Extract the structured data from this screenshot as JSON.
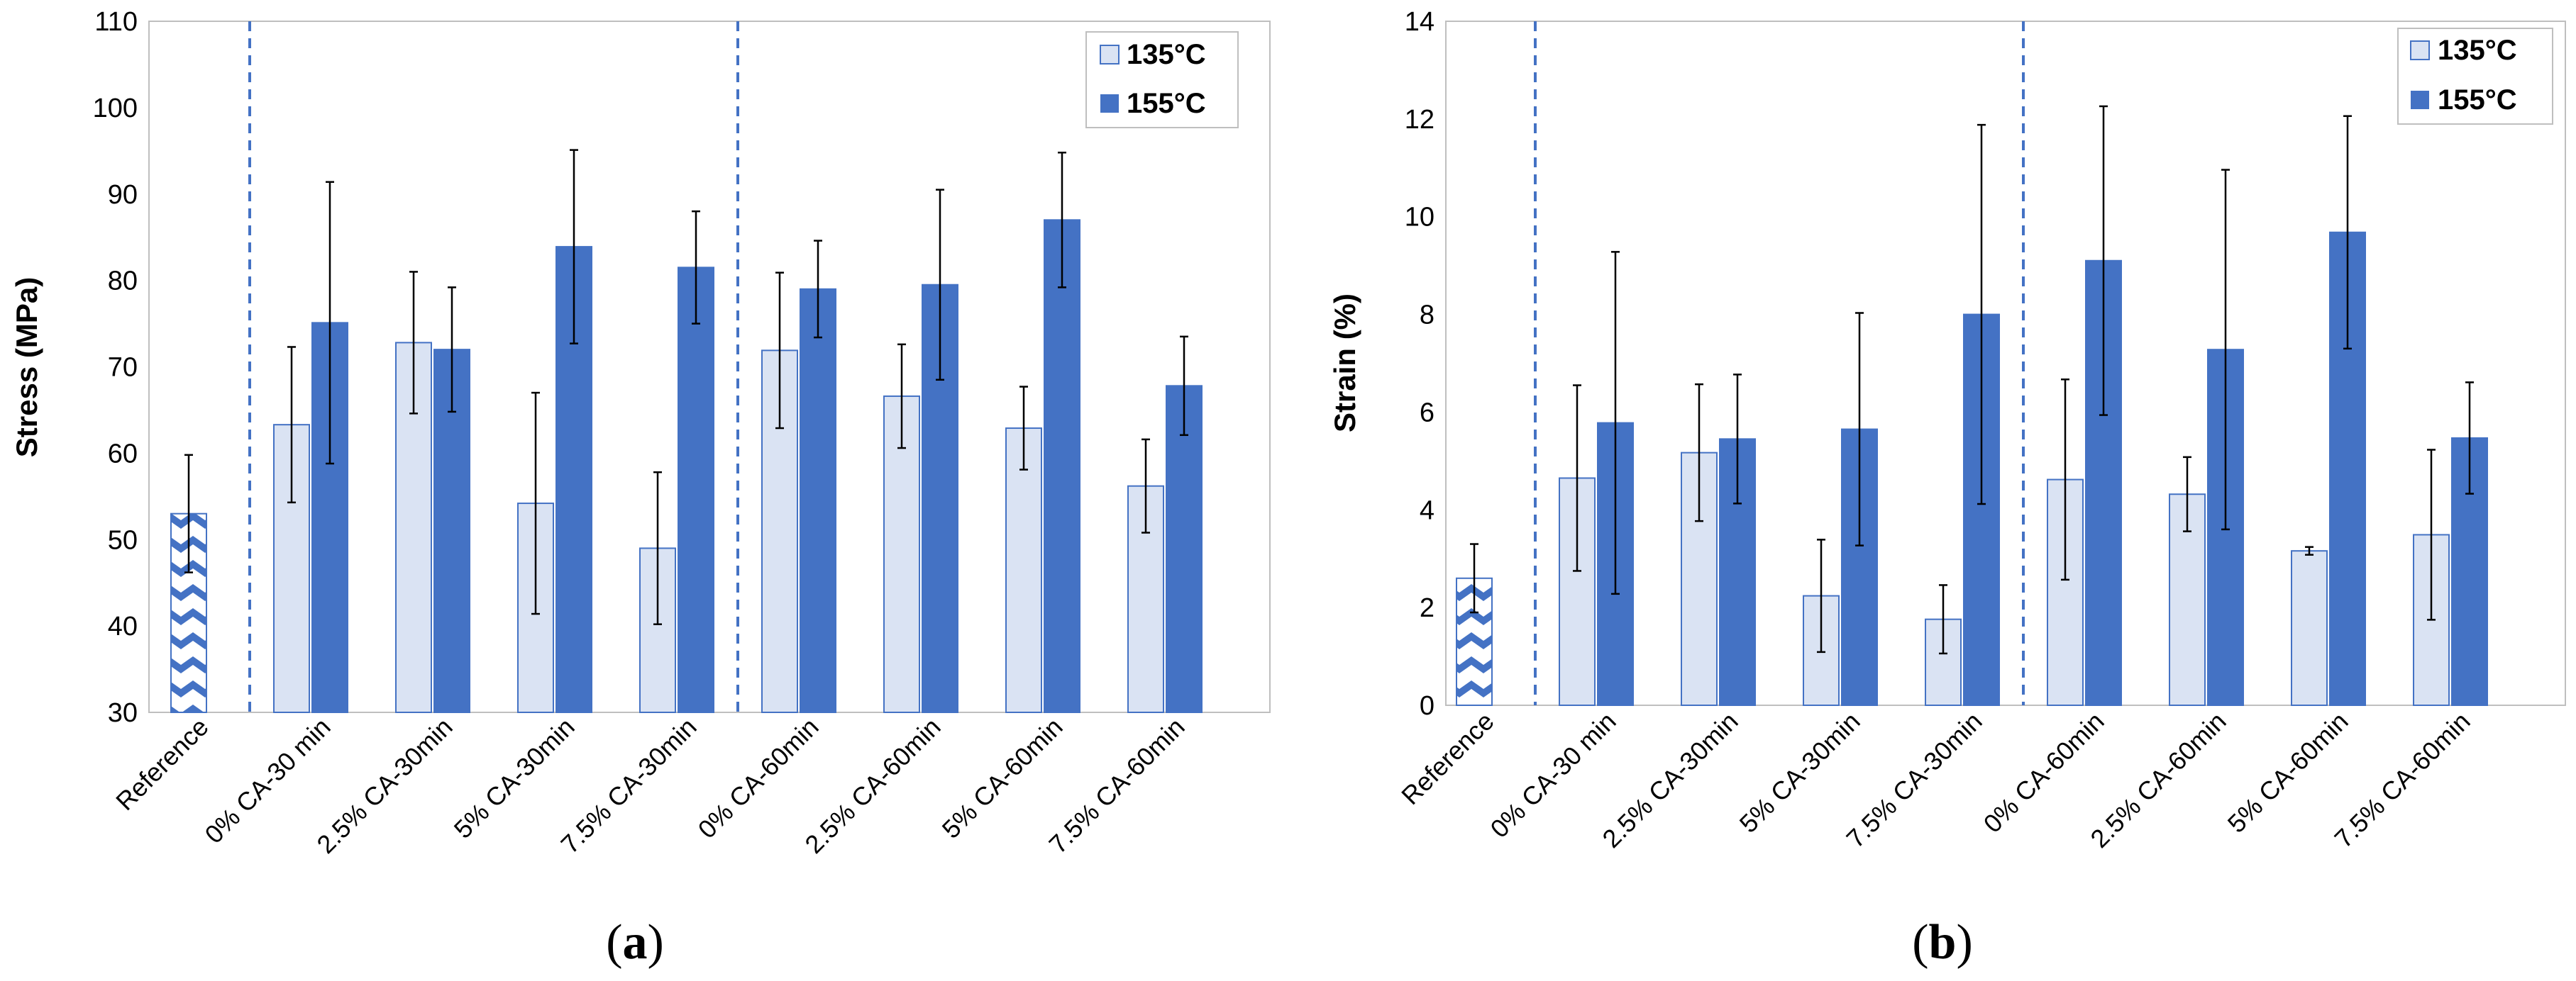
{
  "chart_data": [
    {
      "type": "bar",
      "panel_label": "a",
      "ylabel": "Stress (MPa)",
      "xlabel": "",
      "ylim": [
        30,
        110
      ],
      "yticks": [
        30,
        40,
        50,
        60,
        70,
        80,
        90,
        100,
        110
      ],
      "grid": false,
      "legend_position": "top-right",
      "categories": [
        "Reference",
        "0% CA-30 min",
        "2.5% CA-30min",
        "5% CA-30min",
        "7.5% CA-30min",
        "0% CA-60min",
        "2.5% CA-60min",
        "5% CA-60min",
        "7.5% CA-60min"
      ],
      "reference": {
        "name": "Reference",
        "value": 53,
        "error": 6.8,
        "color": "#4472c4"
      },
      "series": [
        {
          "name": "135°C",
          "color": "#dae3f3",
          "edge": "#4472c4",
          "values": [
            null,
            63.3,
            72.8,
            54.2,
            49.0,
            71.9,
            66.6,
            62.9,
            56.2
          ],
          "errors": [
            null,
            9.0,
            8.2,
            12.8,
            8.8,
            9.0,
            6.0,
            4.8,
            5.4
          ]
        },
        {
          "name": "155°C",
          "color": "#4472c4",
          "edge": "#4472c4",
          "values": [
            null,
            75.1,
            72.0,
            83.9,
            81.5,
            79.0,
            79.5,
            87.0,
            67.8
          ],
          "errors": [
            null,
            16.3,
            7.2,
            11.2,
            6.5,
            5.6,
            11.0,
            7.8,
            5.7
          ]
        }
      ],
      "dividers_after_category": [
        0,
        4
      ]
    },
    {
      "type": "bar",
      "panel_label": "b",
      "ylabel": "Strain (%)",
      "xlabel": "",
      "ylim": [
        0,
        14
      ],
      "yticks": [
        0,
        2,
        4,
        6,
        8,
        10,
        12,
        14
      ],
      "grid": false,
      "legend_position": "top-right",
      "categories": [
        "Reference",
        "0% CA-30 min",
        "2.5% CA-30min",
        "5% CA-30min",
        "7.5% CA-30min",
        "0% CA-60min",
        "2.5% CA-60min",
        "5% CA-60min",
        "7.5% CA-60min"
      ],
      "reference": {
        "name": "Reference",
        "value": 2.6,
        "error": 0.7,
        "color": "#4472c4"
      },
      "series": [
        {
          "name": "135°C",
          "color": "#dae3f3",
          "edge": "#4472c4",
          "values": [
            null,
            4.65,
            5.17,
            2.24,
            1.76,
            4.62,
            4.32,
            3.16,
            3.49
          ],
          "errors": [
            null,
            1.9,
            1.4,
            1.15,
            0.7,
            2.05,
            0.76,
            0.08,
            1.74
          ]
        },
        {
          "name": "155°C",
          "color": "#4472c4",
          "edge": "#4472c4",
          "values": [
            null,
            5.78,
            5.45,
            5.65,
            8.0,
            9.1,
            7.28,
            9.68,
            5.47
          ],
          "errors": [
            null,
            3.5,
            1.32,
            2.38,
            3.88,
            3.16,
            3.68,
            2.38,
            1.14
          ]
        }
      ],
      "dividers_after_category": [
        0,
        4
      ]
    }
  ]
}
